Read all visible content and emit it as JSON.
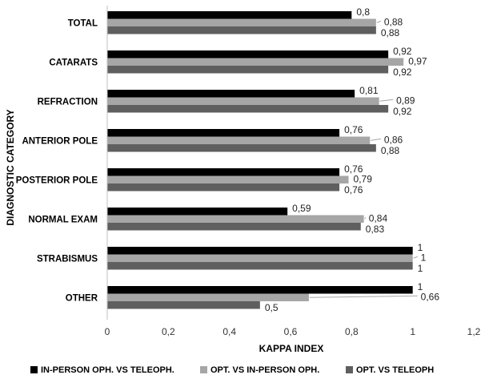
{
  "chart_data": {
    "type": "bar",
    "orientation": "horizontal",
    "categories": [
      "TOTAL",
      "CATARATS",
      "REFRACTION",
      "ANTERIOR POLE",
      "POSTERIOR POLE",
      "NORMAL EXAM",
      "STRABISMUS",
      "OTHER"
    ],
    "series": [
      {
        "name": "IN-PERSON OPH. VS TELEOPH.",
        "color": "#000000",
        "values": [
          0.8,
          0.92,
          0.81,
          0.76,
          0.76,
          0.59,
          1,
          1
        ]
      },
      {
        "name": "OPT. VS IN-PERSON OPH.",
        "color": "#a6a6a6",
        "values": [
          0.88,
          0.97,
          0.89,
          0.86,
          0.79,
          0.84,
          1,
          0.66
        ]
      },
      {
        "name": "OPT. VS TELEOPH",
        "color": "#5f5f5f",
        "values": [
          0.88,
          0.92,
          0.92,
          0.88,
          0.76,
          0.83,
          1,
          0.5
        ]
      }
    ],
    "data_labels": [
      [
        "0,8",
        "0,92",
        "0,81",
        "0,76",
        "0,76",
        "0,59",
        "1",
        "1"
      ],
      [
        "0,88",
        "0,97",
        "0,89",
        "0,86",
        "0,79",
        "0,84",
        "1",
        "0,66"
      ],
      [
        "0,88",
        "0,92",
        "0,92",
        "0,88",
        "0,76",
        "0,83",
        "1",
        "0,5"
      ]
    ],
    "xlim": [
      0,
      1.2
    ],
    "x_ticks": [
      0,
      0.2,
      0.4,
      0.6,
      0.8,
      1,
      1.2
    ],
    "x_tick_labels": [
      "0",
      "0,2",
      "0,4",
      "0,6",
      "0,8",
      "1",
      "1,2"
    ],
    "xlabel": "KAPPA INDEX",
    "ylabel": "DIAGNOSTIC CATEGORY",
    "grid": false,
    "legend_position": "bottom"
  }
}
